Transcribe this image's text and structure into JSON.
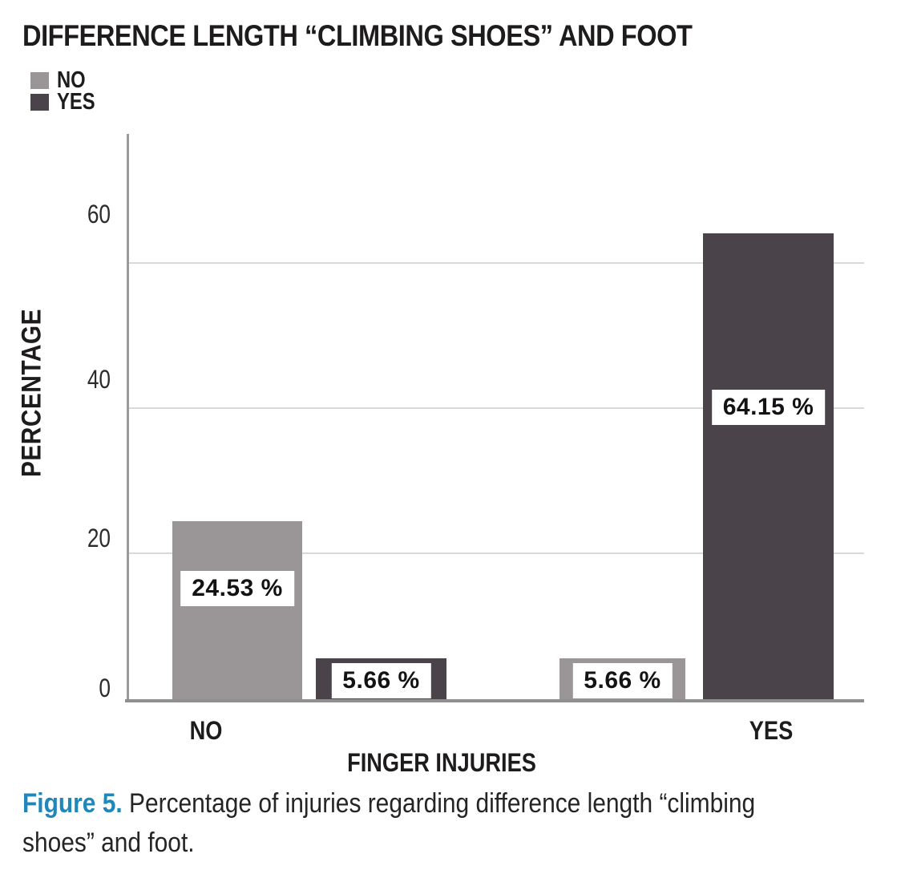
{
  "title": "DIFFERENCE LENGTH “CLIMBING SHOES” AND FOOT",
  "legend": {
    "items": [
      {
        "label": "NO",
        "color": "#9a9596"
      },
      {
        "label": "YES",
        "color": "#4a434a"
      }
    ]
  },
  "chart_data": {
    "type": "bar",
    "title": "DIFFERENCE LENGTH “CLIMBING SHOES” AND FOOT",
    "xlabel": "FINGER INJURIES",
    "ylabel": "PERCENTAGE",
    "categories": [
      "NO",
      "YES"
    ],
    "series": [
      {
        "name": "NO",
        "color": "#9a9596",
        "values": [
          24.53,
          5.66
        ]
      },
      {
        "name": "YES",
        "color": "#4a434a",
        "values": [
          5.66,
          64.15
        ]
      }
    ],
    "value_labels": [
      [
        "24.53 %",
        "5.66 %"
      ],
      [
        "5.66 %",
        "64.15 %"
      ]
    ],
    "yticks": [
      0,
      20,
      40,
      60
    ],
    "ylim": [
      0,
      78
    ],
    "grid": "horizontal",
    "legend_position": "top-left"
  },
  "caption": {
    "prefix": "Figure 5.",
    "line1_rest": " Percentage of injuries regarding difference length “climbing",
    "line2": "shoes” and foot.",
    "accent_color": "#1f87ba"
  }
}
